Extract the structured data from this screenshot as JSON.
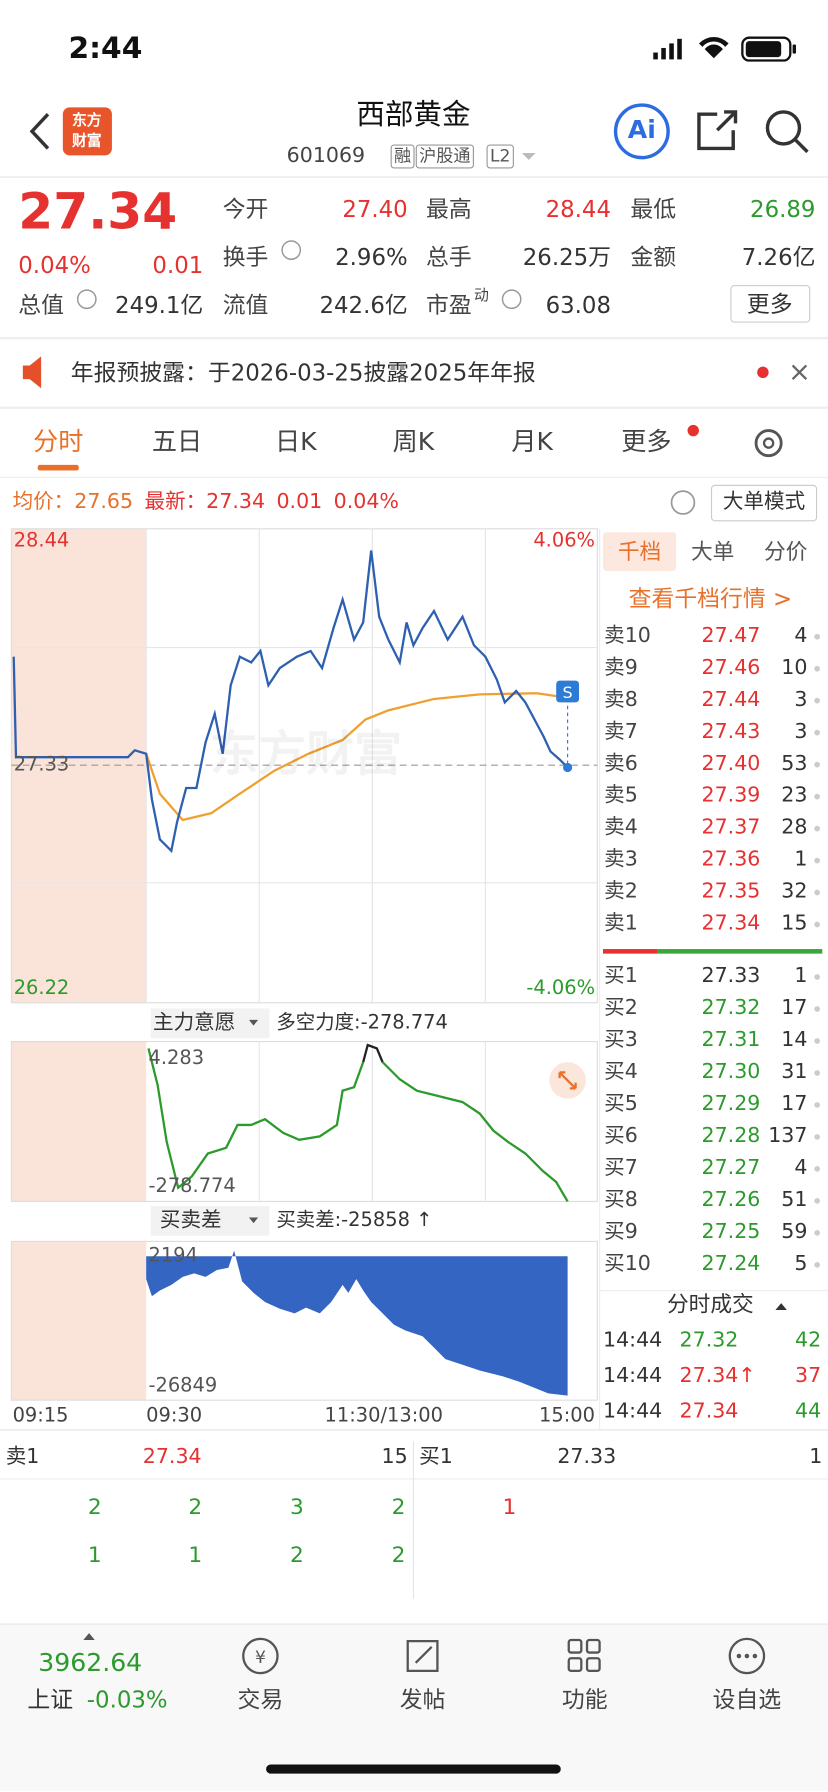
{
  "status": {
    "time": "2:44"
  },
  "header": {
    "logo": [
      "东方",
      "财富"
    ],
    "title": "西部黄金",
    "code": "601069",
    "tags": [
      "融",
      "沪股通",
      "L2"
    ],
    "ai": "Ai"
  },
  "quote": {
    "price": "27.34",
    "change_pct": "0.04%",
    "change": "0.01",
    "fields": [
      {
        "label": "今开",
        "value": "27.40"
      },
      {
        "label": "最高",
        "value": "28.44"
      },
      {
        "label": "最低",
        "value": "26.89"
      },
      {
        "label": "换手",
        "value": "2.96%"
      },
      {
        "label": "总手",
        "value": "26.25万"
      },
      {
        "label": "金额",
        "value": "7.26亿"
      },
      {
        "label": "总值",
        "value": "249.1亿"
      },
      {
        "label": "流值",
        "value": "242.6亿"
      },
      {
        "label": "市盈",
        "sup": "动",
        "value": "63.08"
      }
    ],
    "more": "更多"
  },
  "notice": {
    "text": "年报预披露：于2026-03-25披露2025年年报"
  },
  "tabs": [
    "分时",
    "五日",
    "日K",
    "周K",
    "月K",
    "更多"
  ],
  "chart_info": {
    "avg_label": "均价：",
    "avg": "27.65",
    "latest_label": "最新：",
    "latest": "27.34",
    "change": "0.01",
    "pct": "0.04%",
    "mode": "大单模式"
  },
  "price_axis": {
    "high": "28.44",
    "mid": "27.33",
    "low": "26.22",
    "up_pct": "4.06%",
    "down_pct": "-4.06%",
    "watermark": "东方财富"
  },
  "indicator1": {
    "name": "主力意愿",
    "label": "多空力度:-278.774",
    "top": "4.283",
    "bottom": "-278.774"
  },
  "indicator2": {
    "name": "买卖差",
    "label": "买卖差:-25858 ↑",
    "top": "2194",
    "bottom": "-26849"
  },
  "time_axis": [
    "09:15",
    "09:30",
    "11:30/13:00",
    "15:00"
  ],
  "panel": {
    "tabs": [
      "千档",
      "大单",
      "分价"
    ],
    "link": "查看千档行情 >",
    "asks": [
      [
        "卖10",
        "27.47",
        "4"
      ],
      [
        "卖9",
        "27.46",
        "10"
      ],
      [
        "卖8",
        "27.44",
        "3"
      ],
      [
        "卖7",
        "27.43",
        "3"
      ],
      [
        "卖6",
        "27.40",
        "53"
      ],
      [
        "卖5",
        "27.39",
        "23"
      ],
      [
        "卖4",
        "27.37",
        "28"
      ],
      [
        "卖3",
        "27.36",
        "1"
      ],
      [
        "卖2",
        "27.35",
        "32"
      ],
      [
        "卖1",
        "27.34",
        "15"
      ]
    ],
    "bids": [
      [
        "买1",
        "27.33",
        "1"
      ],
      [
        "买2",
        "27.32",
        "17"
      ],
      [
        "买3",
        "27.31",
        "14"
      ],
      [
        "买4",
        "27.30",
        "31"
      ],
      [
        "买5",
        "27.29",
        "17"
      ],
      [
        "买6",
        "27.28",
        "137"
      ],
      [
        "买7",
        "27.27",
        "4"
      ],
      [
        "买8",
        "27.26",
        "51"
      ],
      [
        "买9",
        "27.25",
        "59"
      ],
      [
        "买10",
        "27.24",
        "5"
      ]
    ],
    "trades_title": "分时成交",
    "trades": [
      {
        "time": "14:44",
        "price": "27.32",
        "vol": "42",
        "color": "#2c9a2c"
      },
      {
        "time": "14:44",
        "price": "27.34↑",
        "vol": "37",
        "color": "#e5312f"
      },
      {
        "time": "14:44",
        "price": "27.34",
        "vol": "44",
        "color": "#2c9a2c"
      }
    ]
  },
  "book": {
    "sell": [
      "卖1",
      "27.34",
      "15"
    ],
    "buy": [
      "买1",
      "27.33",
      "1"
    ],
    "sell_rows": [
      [
        "2",
        "2",
        "3",
        "2"
      ],
      [
        "1",
        "1",
        "2",
        "2"
      ]
    ],
    "buy_rows": [
      [
        "1"
      ]
    ]
  },
  "nav": {
    "index_value": "3962.64",
    "index_name": "上证",
    "index_pct": "-0.03%",
    "items": [
      "交易",
      "发帖",
      "功能",
      "设自选"
    ]
  }
}
